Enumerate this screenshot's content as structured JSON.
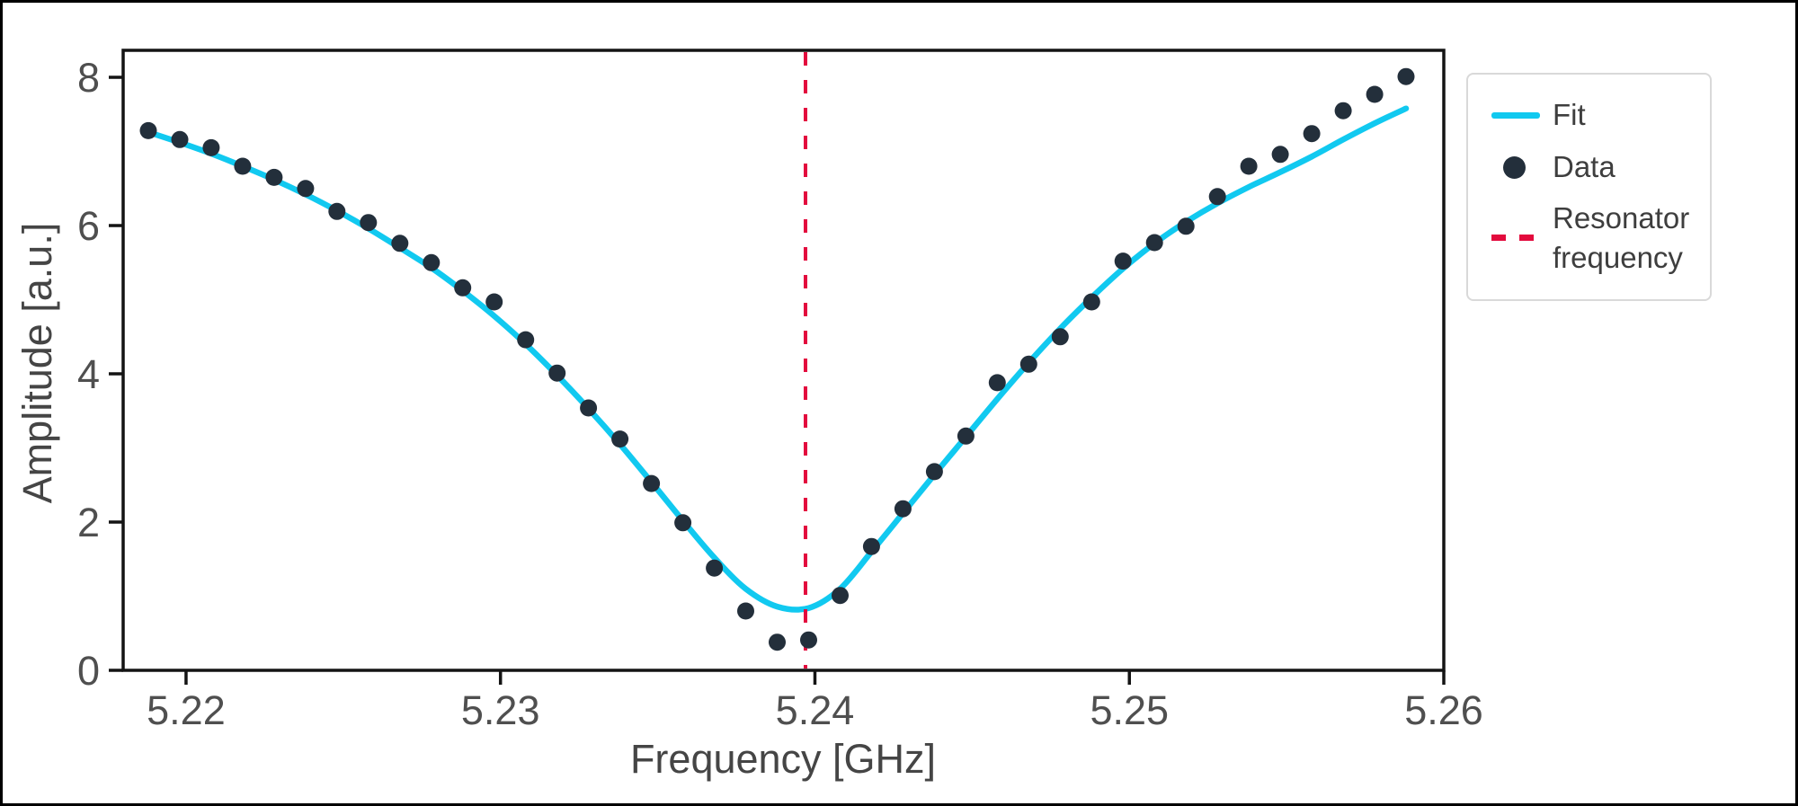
{
  "figure": {
    "xlabel": "Frequency [GHz]",
    "ylabel": "Amplitude [a.u.]"
  },
  "legend": {
    "position": "upper right, outside axes",
    "items": [
      {
        "label": "Fit",
        "marker": "line",
        "color": "#11c9f0"
      },
      {
        "label": "Data",
        "marker": "dot",
        "color": "#232f3b"
      },
      {
        "label": "Resonator frequency",
        "marker": "dashed-line",
        "color": "#e30b3d"
      }
    ]
  },
  "chart_data": {
    "type": "line+scatter",
    "title": "",
    "xlabel": "Frequency [GHz]",
    "ylabel": "Amplitude [a.u.]",
    "xlim": [
      5.218,
      5.26
    ],
    "ylim": [
      0,
      8.364
    ],
    "grid": false,
    "x_ticks": [
      5.22,
      5.23,
      5.24,
      5.25,
      5.26
    ],
    "x_tick_labels": [
      "5.22",
      "5.23",
      "5.24",
      "5.25",
      "5.26"
    ],
    "y_ticks": [
      0,
      2,
      4,
      6,
      8
    ],
    "y_tick_labels": [
      "0",
      "2",
      "4",
      "6",
      "8"
    ],
    "resonator_frequency_ghz": 5.2397,
    "x": [
      5.2188,
      5.2198,
      5.2208,
      5.2218,
      5.2228,
      5.2238,
      5.2248,
      5.2258,
      5.2268,
      5.2278,
      5.2288,
      5.2298,
      5.2308,
      5.2318,
      5.2328,
      5.2338,
      5.2348,
      5.2358,
      5.2368,
      5.2378,
      5.2388,
      5.2398,
      5.2408,
      5.2418,
      5.2428,
      5.2438,
      5.2448,
      5.2458,
      5.2468,
      5.2478,
      5.2488,
      5.2498,
      5.2508,
      5.2518,
      5.2528,
      5.2538,
      5.2548,
      5.2558,
      5.2568,
      5.2578,
      5.2588
    ],
    "series": [
      {
        "name": "Fit",
        "type": "line",
        "color": "#11c9f0",
        "values": [
          7.26,
          7.12,
          6.97,
          6.8,
          6.62,
          6.42,
          6.2,
          5.96,
          5.7,
          5.43,
          5.12,
          4.78,
          4.4,
          3.98,
          3.53,
          3.05,
          2.54,
          2.02,
          1.52,
          1.1,
          0.86,
          0.84,
          1.1,
          1.6,
          2.12,
          2.64,
          3.15,
          3.66,
          4.15,
          4.61,
          5.03,
          5.42,
          5.76,
          6.05,
          6.3,
          6.52,
          6.72,
          6.93,
          7.16,
          7.38,
          7.58
        ]
      },
      {
        "name": "Data",
        "type": "scatter",
        "color": "#232f3b",
        "values": [
          7.28,
          7.16,
          7.05,
          6.8,
          6.65,
          6.5,
          6.19,
          6.04,
          5.76,
          5.5,
          5.16,
          4.97,
          4.46,
          4.01,
          3.54,
          3.12,
          2.52,
          1.99,
          1.38,
          0.8,
          0.38,
          0.41,
          1.01,
          1.67,
          2.18,
          2.68,
          3.16,
          3.88,
          4.13,
          4.5,
          4.97,
          5.52,
          5.77,
          5.99,
          6.39,
          6.8,
          6.96,
          7.24,
          7.55,
          7.77,
          8.01
        ]
      }
    ]
  },
  "style": {
    "fit_color": "#11c9f0",
    "data_color": "#232f3b",
    "resonator_color": "#e30b3d",
    "spine_color": "#141414",
    "tick_label_color": "#4f4f4f",
    "axis_label_color": "#454545",
    "legend_text_color": "#3e3e3e",
    "legend_border_color": "#d9d9d9",
    "background": "#ffffff",
    "frame_color": "#000000"
  }
}
